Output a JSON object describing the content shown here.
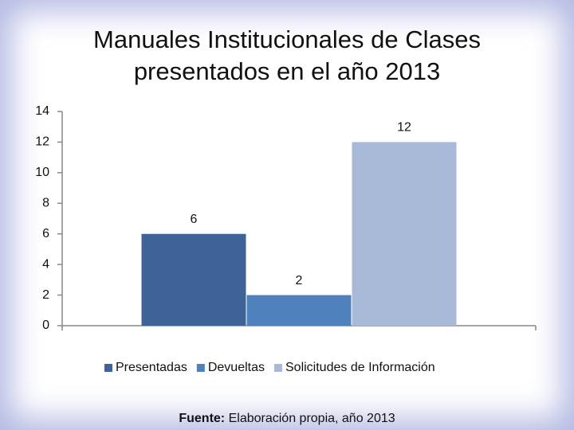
{
  "chart_data": {
    "type": "bar",
    "title": "Manuales Institucionales de Clases presentados en el año 2013",
    "categories": [
      null
    ],
    "series": [
      {
        "name": "Presentadas",
        "color": "#3e6497",
        "values": [
          6
        ]
      },
      {
        "name": "Devueltas",
        "color": "#4f81bd",
        "values": [
          2
        ]
      },
      {
        "name": "Solicitudes de Información",
        "color": "#a9b9d8",
        "values": [
          12
        ]
      }
    ],
    "ylim": [
      0,
      14
    ],
    "yticks": [
      0,
      2,
      4,
      6,
      8,
      10,
      12,
      14
    ],
    "legend": "bottom",
    "source_label": "Fuente:",
    "source": "Elaboración propia, año 2013"
  }
}
